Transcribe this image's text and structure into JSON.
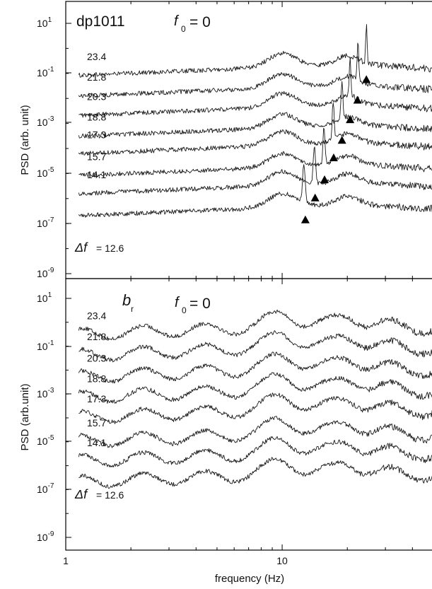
{
  "chart_data": [
    {
      "type": "line",
      "panel_label": "dp1011",
      "f0_text": "= 0",
      "f0_symbol": "f",
      "f0_subscript": "0",
      "xlabel": "",
      "ylabel": "PSD (arb. unit)",
      "x_scale": "log",
      "y_scale": "log",
      "xlim": [
        1,
        50
      ],
      "ylim": [
        1e-09,
        100.0
      ],
      "y_tick_labels": [
        {
          "base": "10",
          "exp": "1",
          "value": 10.0
        },
        {
          "base": "10",
          "exp": "-1",
          "value": 0.1
        },
        {
          "base": "10",
          "exp": "-3",
          "value": 0.001
        },
        {
          "base": "10",
          "exp": "-5",
          "value": 1e-05
        },
        {
          "base": "10",
          "exp": "-7",
          "value": 1e-07
        },
        {
          "base": "10",
          "exp": "-9",
          "value": 1e-09
        }
      ],
      "delta_f_symbol": "Δf",
      "delta_f_eq": "= 12.6",
      "series": [
        {
          "name": "23.4",
          "base_psd": 0.08,
          "peak_freqs": [
            24.5
          ]
        },
        {
          "name": "21.8",
          "base_psd": 0.012,
          "peak_freqs": [
            22.4
          ]
        },
        {
          "name": "20.3",
          "base_psd": 0.002,
          "peak_freqs": [
            20.6
          ]
        },
        {
          "name": "18.8",
          "base_psd": 0.0003,
          "peak_freqs": [
            18.9
          ]
        },
        {
          "name": "17.3",
          "base_psd": 6e-05,
          "peak_freqs": [
            17.2
          ]
        },
        {
          "name": "15.7",
          "base_psd": 8e-06,
          "peak_freqs": [
            15.6
          ]
        },
        {
          "name": "14.1",
          "base_psd": 1.5e-06,
          "peak_freqs": [
            14.1
          ]
        },
        {
          "name": "12.6",
          "base_psd": 2e-07,
          "peak_freqs": [
            12.6
          ]
        }
      ],
      "triangle_markers_hz": [
        12.8,
        14.2,
        15.7,
        17.3,
        18.9,
        20.6,
        22.3,
        24.5
      ]
    },
    {
      "type": "line",
      "panel_label": "b",
      "panel_label_sub": "r",
      "f0_text": "= 0",
      "f0_symbol": "f",
      "f0_subscript": "0",
      "xlabel": "frequency (Hz)",
      "ylabel": "PSD (arb.unit)",
      "x_scale": "log",
      "y_scale": "log",
      "xlim": [
        1,
        50
      ],
      "ylim": [
        1e-10,
        100.0
      ],
      "x_tick_labels": [
        {
          "label": "1",
          "value": 1
        },
        {
          "label": "10",
          "value": 10
        }
      ],
      "y_tick_labels": [
        {
          "base": "10",
          "exp": "1",
          "value": 10.0
        },
        {
          "base": "10",
          "exp": "-1",
          "value": 0.1
        },
        {
          "base": "10",
          "exp": "-3",
          "value": 0.001
        },
        {
          "base": "10",
          "exp": "-5",
          "value": 1e-05
        },
        {
          "base": "10",
          "exp": "-7",
          "value": 1e-07
        },
        {
          "base": "10",
          "exp": "-9",
          "value": 1e-09
        }
      ],
      "delta_f_symbol": "Δf",
      "delta_f_eq": "= 12.6",
      "series": [
        {
          "name": "23.4",
          "base_psd": 0.3
        },
        {
          "name": "21.8",
          "base_psd": 0.04
        },
        {
          "name": "20.3",
          "base_psd": 0.005
        },
        {
          "name": "18.8",
          "base_psd": 0.0007
        },
        {
          "name": "17.3",
          "base_psd": 0.0001
        },
        {
          "name": "15.7",
          "base_psd": 1e-05
        },
        {
          "name": "14.1",
          "base_psd": 1.5e-06
        },
        {
          "name": "12.6",
          "base_psd": 2e-07
        }
      ]
    }
  ]
}
